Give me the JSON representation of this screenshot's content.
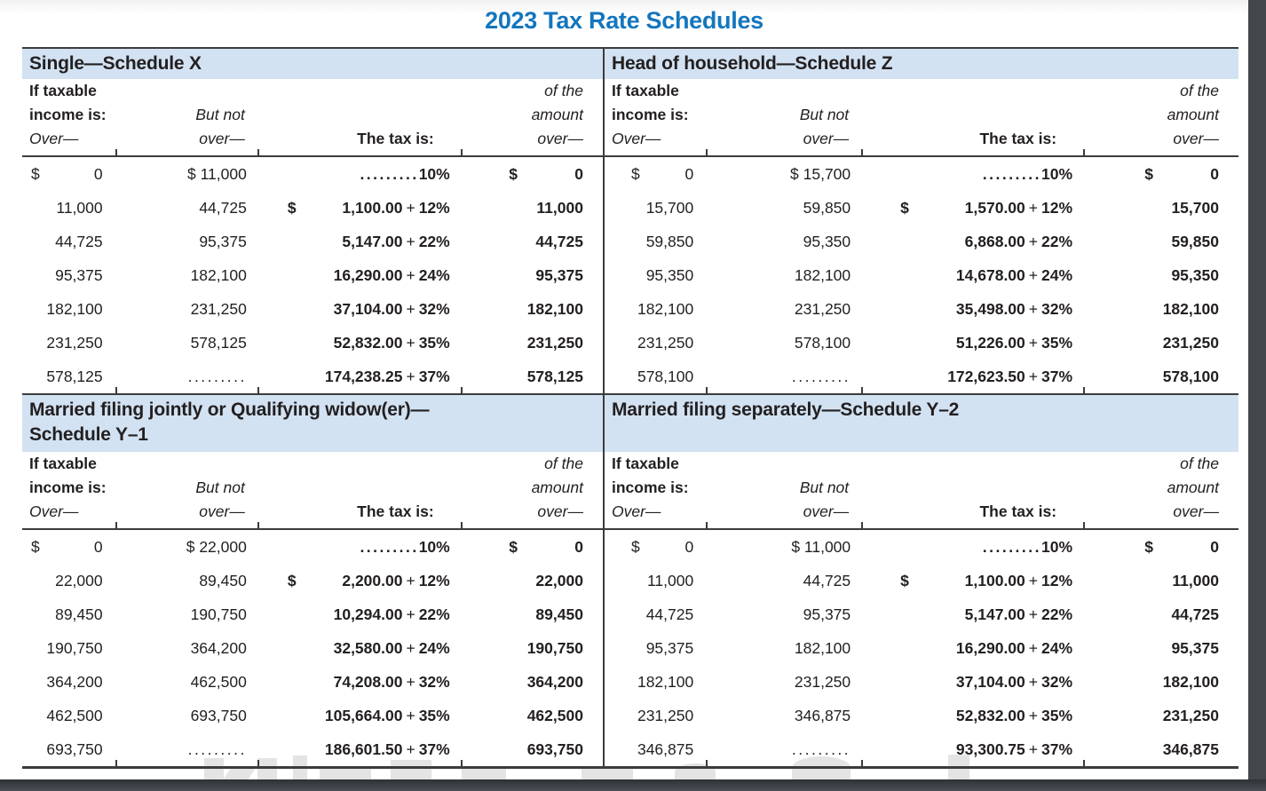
{
  "page": {
    "title": "2023 Tax Rate Schedules"
  },
  "colors": {
    "title_blue": "#1476bd",
    "band_blue": "#d2e2f2",
    "text_ink": "#231f20",
    "rule": "#3c3c3c",
    "chrome_dark": "#42474c",
    "watermark_gray": "#e4e4e4"
  },
  "column_headers": {
    "col1": [
      "If taxable",
      "income is:",
      "Over—"
    ],
    "col2": [
      "But not",
      "over—"
    ],
    "col3": [
      "The tax is:"
    ],
    "col4": [
      "of the",
      "amount",
      "over—"
    ]
  },
  "schedules": [
    {
      "id": "single",
      "title_line1": "Single—Schedule X",
      "title_line2": "",
      "rows": [
        {
          "over_dollar": "$",
          "over": "0",
          "but_not_over": "$ 11,000",
          "tax_dollar": "",
          "tax_amount": ".........",
          "tax_plus": "",
          "tax_rate": "10%",
          "amount_dollar": "$",
          "amount_over": "0"
        },
        {
          "over_dollar": "",
          "over": "11,000",
          "but_not_over": "44,725",
          "tax_dollar": "$",
          "tax_amount": "1,100.00",
          "tax_plus": "+",
          "tax_rate": "12%",
          "amount_dollar": "",
          "amount_over": "11,000"
        },
        {
          "over_dollar": "",
          "over": "44,725",
          "but_not_over": "95,375",
          "tax_dollar": "",
          "tax_amount": "5,147.00",
          "tax_plus": "+",
          "tax_rate": "22%",
          "amount_dollar": "",
          "amount_over": "44,725"
        },
        {
          "over_dollar": "",
          "over": "95,375",
          "but_not_over": "182,100",
          "tax_dollar": "",
          "tax_amount": "16,290.00",
          "tax_plus": "+",
          "tax_rate": "24%",
          "amount_dollar": "",
          "amount_over": "95,375"
        },
        {
          "over_dollar": "",
          "over": "182,100",
          "but_not_over": "231,250",
          "tax_dollar": "",
          "tax_amount": "37,104.00",
          "tax_plus": "+",
          "tax_rate": "32%",
          "amount_dollar": "",
          "amount_over": "182,100"
        },
        {
          "over_dollar": "",
          "over": "231,250",
          "but_not_over": "578,125",
          "tax_dollar": "",
          "tax_amount": "52,832.00",
          "tax_plus": "+",
          "tax_rate": "35%",
          "amount_dollar": "",
          "amount_over": "231,250"
        },
        {
          "over_dollar": "",
          "over": "578,125",
          "but_not_over": ".........",
          "tax_dollar": "",
          "tax_amount": "174,238.25",
          "tax_plus": "+",
          "tax_rate": "37%",
          "amount_dollar": "",
          "amount_over": "578,125"
        }
      ]
    },
    {
      "id": "head-of-household",
      "title_line1": "Head of household—Schedule Z",
      "title_line2": "",
      "rows": [
        {
          "over_dollar": "$",
          "over": "0",
          "but_not_over": "$ 15,700",
          "tax_dollar": "",
          "tax_amount": ".........",
          "tax_plus": "",
          "tax_rate": "10%",
          "amount_dollar": "$",
          "amount_over": "0"
        },
        {
          "over_dollar": "",
          "over": "15,700",
          "but_not_over": "59,850",
          "tax_dollar": "$",
          "tax_amount": "1,570.00",
          "tax_plus": "+",
          "tax_rate": "12%",
          "amount_dollar": "",
          "amount_over": "15,700"
        },
        {
          "over_dollar": "",
          "over": "59,850",
          "but_not_over": "95,350",
          "tax_dollar": "",
          "tax_amount": "6,868.00",
          "tax_plus": "+",
          "tax_rate": "22%",
          "amount_dollar": "",
          "amount_over": "59,850"
        },
        {
          "over_dollar": "",
          "over": "95,350",
          "but_not_over": "182,100",
          "tax_dollar": "",
          "tax_amount": "14,678.00",
          "tax_plus": "+",
          "tax_rate": "24%",
          "amount_dollar": "",
          "amount_over": "95,350"
        },
        {
          "over_dollar": "",
          "over": "182,100",
          "but_not_over": "231,250",
          "tax_dollar": "",
          "tax_amount": "35,498.00",
          "tax_plus": "+",
          "tax_rate": "32%",
          "amount_dollar": "",
          "amount_over": "182,100"
        },
        {
          "over_dollar": "",
          "over": "231,250",
          "but_not_over": "578,100",
          "tax_dollar": "",
          "tax_amount": "51,226.00",
          "tax_plus": "+",
          "tax_rate": "35%",
          "amount_dollar": "",
          "amount_over": "231,250"
        },
        {
          "over_dollar": "",
          "over": "578,100",
          "but_not_over": ".........",
          "tax_dollar": "",
          "tax_amount": "172,623.50",
          "tax_plus": "+",
          "tax_rate": "37%",
          "amount_dollar": "",
          "amount_over": "578,100"
        }
      ]
    },
    {
      "id": "married-filing-jointly",
      "title_line1": "Married filing jointly or Qualifying widow(er)—",
      "title_line2": "Schedule Y–1",
      "rows": [
        {
          "over_dollar": "$",
          "over": "0",
          "but_not_over": "$ 22,000",
          "tax_dollar": "",
          "tax_amount": ".........",
          "tax_plus": "",
          "tax_rate": "10%",
          "amount_dollar": "$",
          "amount_over": "0"
        },
        {
          "over_dollar": "",
          "over": "22,000",
          "but_not_over": "89,450",
          "tax_dollar": "$",
          "tax_amount": "2,200.00",
          "tax_plus": "+",
          "tax_rate": "12%",
          "amount_dollar": "",
          "amount_over": "22,000"
        },
        {
          "over_dollar": "",
          "over": "89,450",
          "but_not_over": "190,750",
          "tax_dollar": "",
          "tax_amount": "10,294.00",
          "tax_plus": "+",
          "tax_rate": "22%",
          "amount_dollar": "",
          "amount_over": "89,450"
        },
        {
          "over_dollar": "",
          "over": "190,750",
          "but_not_over": "364,200",
          "tax_dollar": "",
          "tax_amount": "32,580.00",
          "tax_plus": "+",
          "tax_rate": "24%",
          "amount_dollar": "",
          "amount_over": "190,750"
        },
        {
          "over_dollar": "",
          "over": "364,200",
          "but_not_over": "462,500",
          "tax_dollar": "",
          "tax_amount": "74,208.00",
          "tax_plus": "+",
          "tax_rate": "32%",
          "amount_dollar": "",
          "amount_over": "364,200"
        },
        {
          "over_dollar": "",
          "over": "462,500",
          "but_not_over": "693,750",
          "tax_dollar": "",
          "tax_amount": "105,664.00",
          "tax_plus": "+",
          "tax_rate": "35%",
          "amount_dollar": "",
          "amount_over": "462,500"
        },
        {
          "over_dollar": "",
          "over": "693,750",
          "but_not_over": ".........",
          "tax_dollar": "",
          "tax_amount": "186,601.50",
          "tax_plus": "+",
          "tax_rate": "37%",
          "amount_dollar": "",
          "amount_over": "693,750"
        }
      ]
    },
    {
      "id": "married-filing-separately",
      "title_line1": "Married filing separately—Schedule Y–2",
      "title_line2": "",
      "rows": [
        {
          "over_dollar": "$",
          "over": "0",
          "but_not_over": "$ 11,000",
          "tax_dollar": "",
          "tax_amount": ".........",
          "tax_plus": "",
          "tax_rate": "10%",
          "amount_dollar": "$",
          "amount_over": "0"
        },
        {
          "over_dollar": "",
          "over": "11,000",
          "but_not_over": "44,725",
          "tax_dollar": "$",
          "tax_amount": "1,100.00",
          "tax_plus": "+",
          "tax_rate": "12%",
          "amount_dollar": "",
          "amount_over": "11,000"
        },
        {
          "over_dollar": "",
          "over": "44,725",
          "but_not_over": "95,375",
          "tax_dollar": "",
          "tax_amount": "5,147.00",
          "tax_plus": "+",
          "tax_rate": "22%",
          "amount_dollar": "",
          "amount_over": "44,725"
        },
        {
          "over_dollar": "",
          "over": "95,375",
          "but_not_over": "182,100",
          "tax_dollar": "",
          "tax_amount": "16,290.00",
          "tax_plus": "+",
          "tax_rate": "24%",
          "amount_dollar": "",
          "amount_over": "95,375"
        },
        {
          "over_dollar": "",
          "over": "182,100",
          "but_not_over": "231,250",
          "tax_dollar": "",
          "tax_amount": "37,104.00",
          "tax_plus": "+",
          "tax_rate": "32%",
          "amount_dollar": "",
          "amount_over": "182,100"
        },
        {
          "over_dollar": "",
          "over": "231,250",
          "but_not_over": "346,875",
          "tax_dollar": "",
          "tax_amount": "52,832.00",
          "tax_plus": "+",
          "tax_rate": "35%",
          "amount_dollar": "",
          "amount_over": "231,250"
        },
        {
          "over_dollar": "",
          "over": "346,875",
          "but_not_over": ".........",
          "tax_dollar": "",
          "tax_amount": "93,300.75",
          "tax_plus": "+",
          "tax_rate": "37%",
          "amount_dollar": "",
          "amount_over": "346,875"
        }
      ]
    }
  ]
}
